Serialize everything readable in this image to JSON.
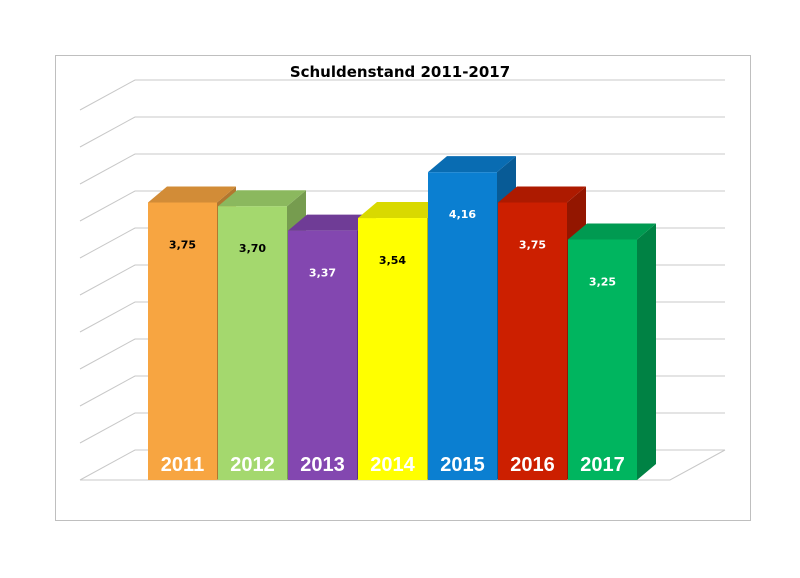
{
  "chart_data": {
    "type": "bar",
    "title": "Schuldenstand 2011-2017",
    "categories": [
      "2011",
      "2012",
      "2013",
      "2014",
      "2015",
      "2016",
      "2017"
    ],
    "values": [
      3.75,
      3.7,
      3.37,
      3.54,
      4.16,
      3.75,
      3.25
    ],
    "value_labels": [
      "3,75",
      "3,70",
      "3,37",
      "3,54",
      "4,16",
      "3,75",
      "3,25"
    ],
    "colors": [
      "#f7a541",
      "#a4d86e",
      "#8347b0",
      "#ffff00",
      "#0b7fd1",
      "#cc1f00",
      "#00b55f"
    ],
    "value_label_colors": [
      "#000000",
      "#000000",
      "#ffffff",
      "#000000",
      "#ffffff",
      "#ffffff",
      "#ffffff"
    ],
    "ylim": [
      0,
      5
    ],
    "grid": true,
    "three_d": true,
    "legend": "none",
    "xlabel": "",
    "ylabel": ""
  }
}
